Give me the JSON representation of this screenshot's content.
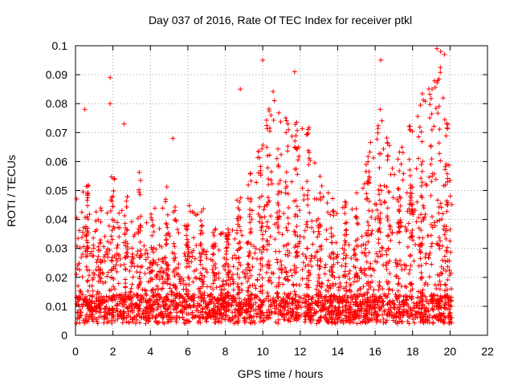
{
  "chart_data": {
    "type": "scatter",
    "title": "Day 037 of 2016, Rate Of TEC Index for receiver ptkl",
    "xlabel": "GPS time / hours",
    "ylabel": "ROTI / TECUs",
    "xlim": [
      0,
      22
    ],
    "ylim": [
      0,
      0.1
    ],
    "grid": true,
    "marker": "+",
    "series_color": "#ff0000",
    "x_ticks": [
      0,
      2,
      4,
      6,
      8,
      10,
      12,
      14,
      16,
      18,
      20,
      22
    ],
    "x_tick_labels": [
      "0",
      "2",
      "4",
      "6",
      "8",
      "10",
      "12",
      "14",
      "16",
      "18",
      "20",
      "22"
    ],
    "y_ticks": [
      0,
      0.01,
      0.02,
      0.03,
      0.04,
      0.05,
      0.06,
      0.07,
      0.08,
      0.09,
      0.1
    ],
    "y_tick_labels": [
      "0",
      "0.01",
      "0.02",
      "0.03",
      "0.04",
      "0.05",
      "0.06",
      "0.07",
      "0.08",
      "0.09",
      "0.1"
    ],
    "activity_profile": [
      [
        0.0,
        0.05
      ],
      [
        0.5,
        0.055
      ],
      [
        1.0,
        0.05
      ],
      [
        1.5,
        0.045
      ],
      [
        2.0,
        0.055
      ],
      [
        2.5,
        0.05
      ],
      [
        3.0,
        0.045
      ],
      [
        3.5,
        0.06
      ],
      [
        4.0,
        0.042
      ],
      [
        4.5,
        0.047
      ],
      [
        5.0,
        0.055
      ],
      [
        5.5,
        0.04
      ],
      [
        6.0,
        0.045
      ],
      [
        6.5,
        0.042
      ],
      [
        7.0,
        0.045
      ],
      [
        7.5,
        0.037
      ],
      [
        8.0,
        0.035
      ],
      [
        8.5,
        0.045
      ],
      [
        9.0,
        0.05
      ],
      [
        9.5,
        0.06
      ],
      [
        10.0,
        0.07
      ],
      [
        10.5,
        0.085
      ],
      [
        11.0,
        0.08
      ],
      [
        11.5,
        0.075
      ],
      [
        12.0,
        0.08
      ],
      [
        12.5,
        0.075
      ],
      [
        13.0,
        0.055
      ],
      [
        13.5,
        0.05
      ],
      [
        14.0,
        0.045
      ],
      [
        14.5,
        0.047
      ],
      [
        15.0,
        0.05
      ],
      [
        15.5,
        0.06
      ],
      [
        16.0,
        0.075
      ],
      [
        16.5,
        0.085
      ],
      [
        17.0,
        0.065
      ],
      [
        17.5,
        0.07
      ],
      [
        18.0,
        0.075
      ],
      [
        18.5,
        0.085
      ],
      [
        19.0,
        0.09
      ],
      [
        19.5,
        0.095
      ],
      [
        19.8,
        0.08
      ],
      [
        20.0,
        0.06
      ],
      [
        20.1,
        0.06
      ]
    ],
    "notable_points": [
      {
        "x": 0.5,
        "y": 0.078
      },
      {
        "x": 1.85,
        "y": 0.089
      },
      {
        "x": 1.85,
        "y": 0.08
      },
      {
        "x": 2.6,
        "y": 0.073
      },
      {
        "x": 5.2,
        "y": 0.068
      },
      {
        "x": 8.8,
        "y": 0.085
      },
      {
        "x": 10.0,
        "y": 0.095
      },
      {
        "x": 11.7,
        "y": 0.091
      },
      {
        "x": 16.3,
        "y": 0.095
      },
      {
        "x": 19.3,
        "y": 0.099
      },
      {
        "x": 19.5,
        "y": 0.098
      },
      {
        "x": 19.7,
        "y": 0.097
      }
    ]
  }
}
